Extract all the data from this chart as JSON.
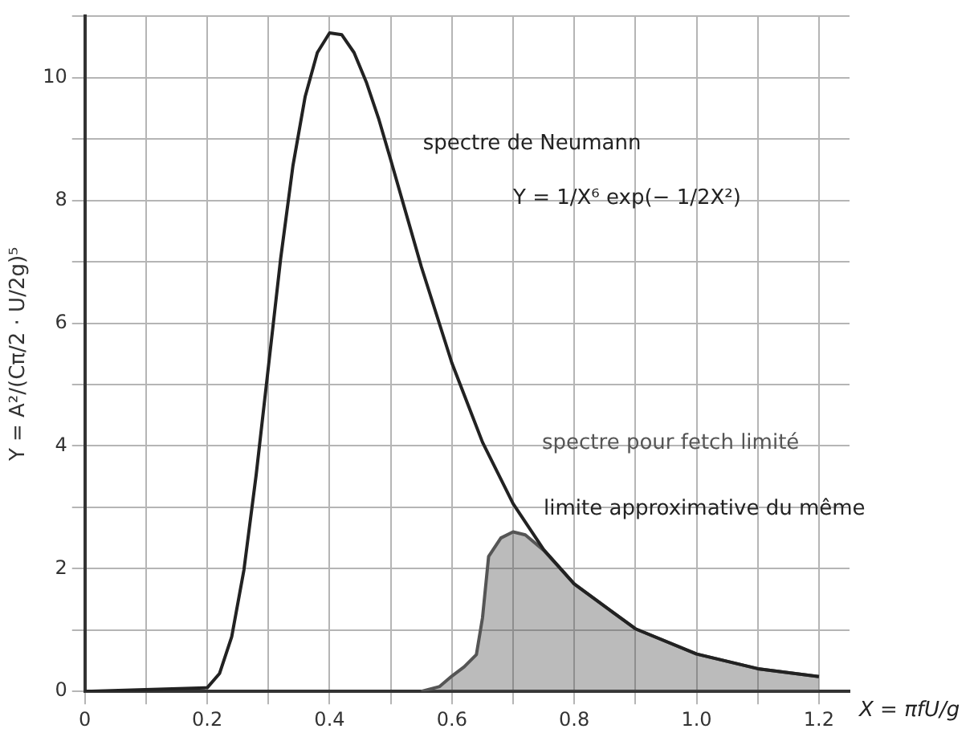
{
  "chart_data": {
    "type": "line",
    "ylabel": "Y = A²/(Cπ/2 · U/2g)⁵",
    "xlabel": "X = πfU/g",
    "xlim": [
      0,
      1.25
    ],
    "ylim": [
      0,
      11
    ],
    "xticks": [
      0,
      {
        "value": 0.1,
        "label": null
      },
      0.2,
      {
        "value": 0.3,
        "label": null
      },
      {
        "value": 0.4,
        "label": "0.4"
      },
      {
        "value": 0.5,
        "label": null
      },
      0.6,
      {
        "value": 0.7,
        "label": null
      },
      0.8,
      {
        "value": 0.9,
        "label": null
      },
      {
        "value": 1.0,
        "label": "1.0"
      },
      {
        "value": 1.1,
        "label": null
      },
      1.2
    ],
    "yticks": [
      0,
      {
        "value": 1,
        "label": null
      },
      2,
      {
        "value": 3,
        "label": null
      },
      4,
      {
        "value": 5,
        "label": null
      },
      6,
      {
        "value": 7,
        "label": null
      },
      8,
      {
        "value": 9,
        "label": null
      },
      10,
      {
        "value": 11,
        "label": null
      }
    ],
    "series": [
      {
        "name": "spectre de Neumann",
        "color": "#222222",
        "x": [
          0,
          0.2,
          0.22,
          0.24,
          0.26,
          0.28,
          0.3,
          0.32,
          0.34,
          0.36,
          0.38,
          0.4,
          0.42,
          0.44,
          0.46,
          0.48,
          0.5,
          0.55,
          0.6,
          0.65,
          0.7,
          0.75,
          0.8,
          0.9,
          1.0,
          1.1,
          1.2
        ],
        "values": [
          0,
          0.06,
          0.29,
          0.89,
          1.98,
          3.53,
          5.29,
          7.05,
          8.56,
          9.69,
          10.41,
          10.73,
          10.7,
          10.41,
          9.93,
          9.34,
          8.66,
          6.92,
          5.35,
          4.06,
          3.06,
          2.31,
          1.75,
          1.02,
          0.61,
          0.37,
          0.24
        ]
      },
      {
        "name": "spectre pour fetch limité",
        "color": "#555555",
        "type": "area",
        "x": [
          0.55,
          0.58,
          0.6,
          0.62,
          0.64,
          0.65,
          0.66,
          0.68,
          0.7,
          0.72,
          0.75,
          0.8,
          0.9,
          1.0,
          1.1,
          1.2
        ],
        "values": [
          0,
          0.08,
          0.25,
          0.4,
          0.6,
          1.2,
          2.2,
          2.5,
          2.6,
          2.55,
          2.3,
          1.75,
          1.02,
          0.61,
          0.37,
          0.24
        ]
      }
    ],
    "annotations": [
      "Y = 1/X⁶ exp(− 1/2X²)",
      "limite approximative du même"
    ],
    "grid": true,
    "legend": false,
    "marker": "none",
    "line_style": "solid"
  }
}
